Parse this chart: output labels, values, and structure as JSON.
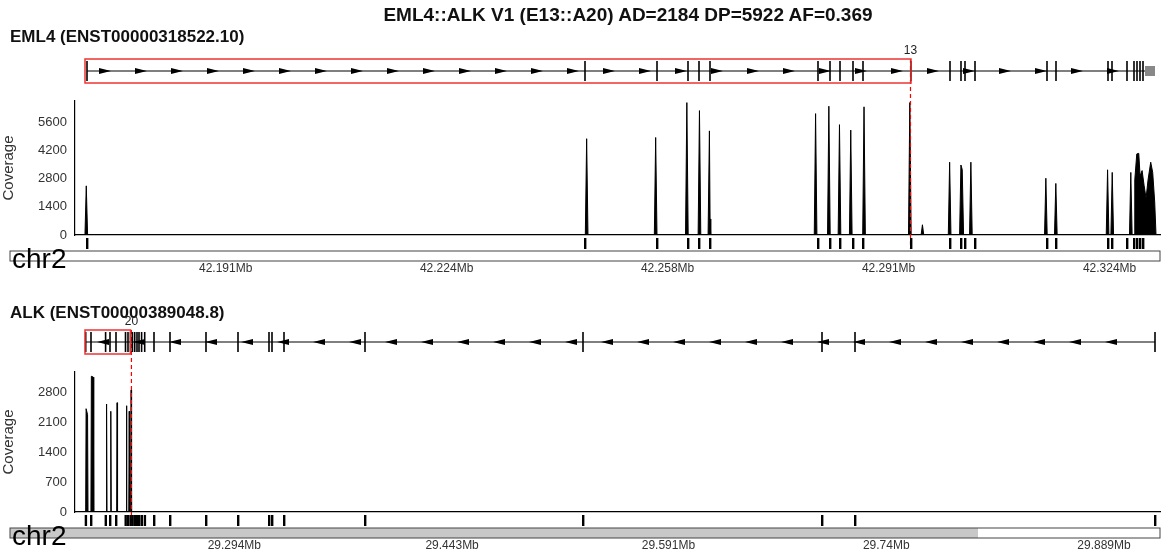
{
  "chart_data": [
    {
      "type": "area",
      "title": "EML4::ALK V1 (E13::A20)   AD=2184 DP=5922 AF=0.369",
      "subtitle": "EML4 (ENST00000318522.10)",
      "ylabel": "Coverage",
      "annotations": [
        "chr2",
        {
          "text": "13",
          "x": 42.2942
        }
      ],
      "series": [
        {
          "color": "#000000",
          "x": [
            42.1683,
            42.1698,
            42.17,
            42.1702,
            42.2452,
            42.2454,
            42.2456,
            42.2556,
            42.2558,
            42.256,
            42.2603,
            42.2605,
            42.2607,
            42.2622,
            42.2624,
            42.2626,
            42.2637,
            42.2639,
            42.264,
            42.2641,
            42.2797,
            42.2799,
            42.2801,
            42.2817,
            42.2819,
            42.2821,
            42.2833,
            42.2835,
            42.2837,
            42.285,
            42.2852,
            42.2854,
            42.287,
            42.2872,
            42.2874,
            42.2939,
            42.2941,
            42.2943,
            42.2958,
            42.296,
            42.2962,
            42.2999,
            42.3001,
            42.3003,
            42.3016,
            42.3018,
            42.302,
            42.3022,
            42.3031,
            42.3033,
            42.3035,
            42.3144,
            42.3146,
            42.3148,
            42.3159,
            42.3161,
            42.3163,
            42.3237,
            42.3239,
            42.3241,
            42.3244,
            42.3246,
            42.3248,
            42.3272,
            42.3274,
            42.3276,
            42.3279,
            42.328,
            42.3283,
            42.3286,
            42.3288,
            42.3291,
            42.3294,
            42.3297,
            42.33,
            42.3304,
            42.3307,
            42.331,
            42.3312,
            42.3318
          ],
          "values": [
            0,
            0,
            2450,
            0,
            0,
            4800,
            0,
            0,
            4860,
            0,
            0,
            6600,
            0,
            0,
            6200,
            0,
            0,
            5190,
            800,
            0,
            0,
            6050,
            0,
            0,
            6420,
            0,
            0,
            5500,
            0,
            0,
            5230,
            0,
            0,
            6390,
            0,
            0,
            6600,
            0,
            0,
            510,
            0,
            0,
            3630,
            0,
            0,
            3490,
            3260,
            0,
            0,
            3630,
            0,
            0,
            2830,
            0,
            0,
            2570,
            0,
            0,
            3250,
            0,
            0,
            3120,
            0,
            0,
            3120,
            0,
            0,
            2750,
            4040,
            4070,
            2940,
            3210,
            2480,
            1830,
            2750,
            3630,
            3120,
            1650,
            0,
            0
          ]
        }
      ],
      "xlim": [
        42.1683,
        42.3318
      ],
      "xticks": [
        {
          "value": 42.191,
          "label": "42.191Mb"
        },
        {
          "value": 42.2243,
          "label": "42.224Mb"
        },
        {
          "value": 42.2576,
          "label": "42.258Mb"
        },
        {
          "value": 42.2909,
          "label": "42.291Mb"
        },
        {
          "value": 42.3242,
          "label": "42.324Mb"
        }
      ],
      "ylim": [
        0,
        6680
      ],
      "yticks": [
        0,
        1400,
        2800,
        4200,
        5600
      ],
      "ref_lines": [
        {
          "axis": "x",
          "value": 42.2942,
          "color": "#ff0000",
          "line_style": "dashed"
        }
      ],
      "grid": false,
      "legend": false
    },
    {
      "type": "area",
      "title": "ALK (ENST00000389048.8)",
      "ylabel": "Coverage",
      "annotations": [
        "chr2",
        {
          "text": "20",
          "x": 29.2236
        }
      ],
      "series": [
        {
          "color": "#000000",
          "x": [
            29.185,
            29.1923,
            29.1926,
            29.1936,
            29.1939,
            29.1959,
            29.1962,
            29.1975,
            29.1978,
            29.2063,
            29.2066,
            29.2069,
            29.2092,
            29.2095,
            29.2098,
            29.2135,
            29.2138,
            29.2141,
            29.2199,
            29.2202,
            29.2205,
            29.2218,
            29.2221,
            29.2224,
            29.2231,
            29.2234,
            29.2237,
            29.9273
          ],
          "values": [
            0,
            0,
            2420,
            2280,
            0,
            0,
            3180,
            3160,
            0,
            0,
            2530,
            0,
            0,
            2360,
            0,
            0,
            2560,
            0,
            0,
            2490,
            0,
            0,
            2360,
            0,
            0,
            2860,
            0,
            0
          ]
        }
      ],
      "xlim": [
        29.185,
        29.9273
      ],
      "xticks": [
        {
          "value": 29.294,
          "label": "29.294Mb"
        },
        {
          "value": 29.443,
          "label": "29.443Mb"
        },
        {
          "value": 29.591,
          "label": "29.591Mb"
        },
        {
          "value": 29.74,
          "label": "29.74Mb"
        },
        {
          "value": 29.889,
          "label": "29.889Mb"
        }
      ],
      "ylim": [
        0,
        3280
      ],
      "yticks": [
        0,
        700,
        1400,
        2100,
        2800
      ],
      "ref_lines": [
        {
          "axis": "x",
          "value": 29.2236,
          "color": "#ff0000",
          "line_style": "dashed"
        }
      ],
      "grid": false,
      "legend": false
    }
  ]
}
